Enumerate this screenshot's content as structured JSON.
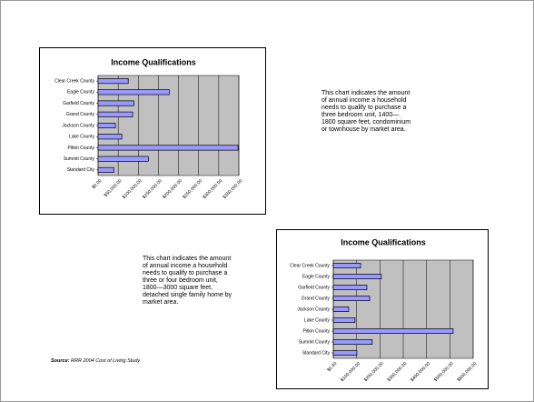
{
  "chart_data": [
    {
      "type": "barh",
      "title": "Income Qualifications",
      "categories": [
        "Clear Creek County",
        "Eagle County",
        "Garfield County",
        "Grand County",
        "Jackson County",
        "Lake County",
        "Pitkin County",
        "Summit County",
        "Standard City"
      ],
      "values": [
        75000,
        177000,
        89000,
        86000,
        43000,
        59000,
        348000,
        125000,
        39000
      ],
      "color": "#9999ff",
      "plot_color": "#c0c0c0",
      "grid": true,
      "xlim": [
        0,
        350000
      ],
      "xticks": [
        {
          "value": 0,
          "label": "$0.00"
        },
        {
          "value": 50000,
          "label": "$50,000.00"
        },
        {
          "value": 100000,
          "label": "$100,000.00"
        },
        {
          "value": 150000,
          "label": "$150,000.00"
        },
        {
          "value": 200000,
          "label": "$200,000.00"
        },
        {
          "value": 250000,
          "label": "$250,000.00"
        },
        {
          "value": 300000,
          "label": "$300,000.00"
        },
        {
          "value": 350000,
          "label": "$350,000.00"
        }
      ]
    },
    {
      "type": "barh",
      "title": "Income Qualifications",
      "categories": [
        "Clear Creek County",
        "Eagle County",
        "Garfield County",
        "Grand County",
        "Jackson County",
        "Lake County",
        "Pitkin County",
        "Summit County",
        "Standard City"
      ],
      "values": [
        117000,
        206000,
        144000,
        156000,
        66000,
        93000,
        514000,
        167000,
        101000
      ],
      "color": "#9999ff",
      "plot_color": "#c0c0c0",
      "grid": true,
      "xlim": [
        0,
        600000
      ],
      "xticks": [
        {
          "value": 0,
          "label": "$0.00"
        },
        {
          "value": 100000,
          "label": "$100,000.00"
        },
        {
          "value": 200000,
          "label": "$200,000.00"
        },
        {
          "value": 300000,
          "label": "$300,000.00"
        },
        {
          "value": 400000,
          "label": "$400,000.00"
        },
        {
          "value": 500000,
          "label": "$500,000.00"
        },
        {
          "value": 600000,
          "label": "$600,000.00"
        }
      ]
    }
  ],
  "notes": [
    "This chart indicates the amount of annual income a household needs to qualify to purchase a three bedroom unit, 1400—1800 square feet, condominium or townhouse by market area.",
    "This chart indicates the amount of annual income a household needs to qualify to purchase a three or four bedroom unit, 1800—3000 square feet, detached single family home by market area."
  ],
  "source": {
    "label": "Source:",
    "text": "RRR 2004 Cost of Living Study"
  }
}
